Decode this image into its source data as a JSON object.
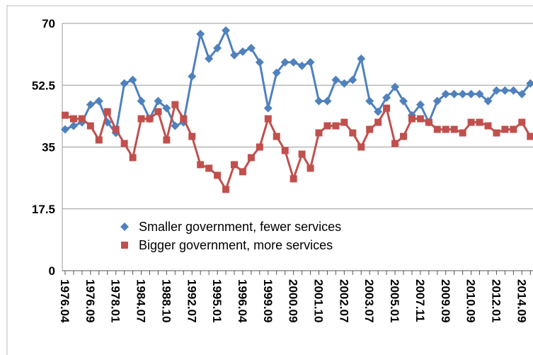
{
  "chart_data": {
    "type": "line",
    "categories": [
      "1976.04",
      null,
      null,
      "1976.09",
      null,
      null,
      "1978.01",
      null,
      null,
      "1984.07",
      null,
      null,
      "1988.10",
      null,
      null,
      "1992.07",
      null,
      null,
      "1995.01",
      null,
      null,
      "1996.04",
      null,
      null,
      "1999.09",
      null,
      null,
      "2000.09",
      null,
      null,
      "2001.10",
      null,
      null,
      "2002.07",
      null,
      null,
      "2003.07",
      null,
      null,
      "2005.01",
      null,
      null,
      "2007.11",
      null,
      null,
      "2009.09",
      null,
      null,
      "2010.09",
      null,
      null,
      "2012.01",
      null,
      null,
      "2014.09",
      null
    ],
    "series": [
      {
        "name": "Smaller government, fewer services",
        "color": "#4f81bd",
        "marker": "diamond",
        "values": [
          40,
          41,
          42,
          47,
          48,
          42,
          39,
          53,
          54,
          48,
          43,
          48,
          46,
          41,
          42,
          55,
          67,
          60,
          63,
          68,
          61,
          62,
          63,
          59,
          46,
          56,
          59,
          59,
          58,
          59,
          48,
          48,
          54,
          53,
          54,
          60,
          48,
          45,
          49,
          52,
          48,
          44,
          47,
          42,
          48,
          50,
          50,
          50,
          50,
          50,
          48,
          51,
          51,
          51,
          50,
          53
        ]
      },
      {
        "name": "Bigger government, more services",
        "color": "#c0504d",
        "marker": "square",
        "values": [
          44,
          43,
          43,
          41,
          37,
          45,
          40,
          36,
          32,
          43,
          43,
          45,
          37,
          47,
          43,
          38,
          30,
          29,
          27,
          23,
          30,
          28,
          32,
          35,
          43,
          38,
          34,
          26,
          33,
          29,
          39,
          41,
          41,
          42,
          39,
          35,
          40,
          42,
          46,
          36,
          38,
          43,
          43,
          42,
          40,
          40,
          40,
          39,
          42,
          42,
          41,
          39,
          40,
          40,
          42,
          38
        ]
      }
    ],
    "ylim": [
      0,
      70
    ],
    "yticks": [
      0,
      17.5,
      35,
      52.5,
      70
    ],
    "grid": true
  }
}
